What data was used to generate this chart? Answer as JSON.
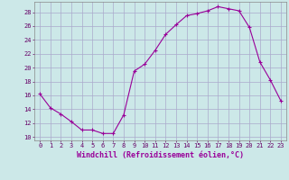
{
  "hours": [
    0,
    1,
    2,
    3,
    4,
    5,
    6,
    7,
    8,
    9,
    10,
    11,
    12,
    13,
    14,
    15,
    16,
    17,
    18,
    19,
    20,
    21,
    22,
    23
  ],
  "windchill": [
    16.2,
    14.2,
    13.3,
    12.2,
    11.0,
    11.0,
    10.5,
    10.5,
    13.2,
    19.5,
    20.5,
    22.5,
    24.8,
    26.2,
    27.5,
    27.8,
    28.2,
    28.8,
    28.5,
    28.2,
    25.8,
    20.8,
    18.2,
    15.2
  ],
  "line_color": "#990099",
  "marker": "+",
  "marker_size": 3,
  "marker_lw": 0.8,
  "line_width": 0.8,
  "bg_color": "#cce8e8",
  "grid_color": "#aaaacc",
  "xlabel": "Windchill (Refroidissement éolien,°C)",
  "xlabel_color": "#990099",
  "ylabel_ticks": [
    10,
    12,
    14,
    16,
    18,
    20,
    22,
    24,
    26,
    28
  ],
  "xlim": [
    -0.5,
    23.5
  ],
  "ylim": [
    9.5,
    29.5
  ],
  "tick_label_color": "#660066",
  "border_color": "#888888",
  "xlabel_fontsize": 6.0,
  "tick_fontsize": 5.0
}
